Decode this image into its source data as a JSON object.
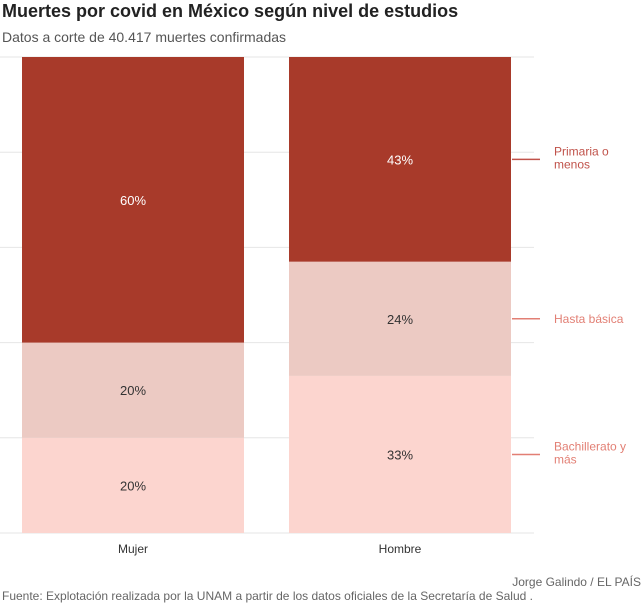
{
  "header": {
    "title": "Muertes por covid en México según nivel de estudios",
    "subtitle": "Datos a corte de 40.417 muertes confirmadas"
  },
  "footer": {
    "source": "Fuente: Explotación realizada por la UNAM a partir de los datos oficiales de la Secretaría de Salud .",
    "credit": "Jorge Galindo / EL PAÍS"
  },
  "colors": {
    "primaria": "#a83a2a",
    "basica": "#eccac3",
    "bachillerato": "#fcd5cf",
    "legend_primaria": "#c0524a",
    "legend_other": "#e27f74",
    "grid": "#e6e6e6"
  },
  "chart_data": {
    "type": "bar",
    "stacked": true,
    "categories": [
      "Mujer",
      "Hombre"
    ],
    "ylim": [
      0,
      100
    ],
    "grid": true,
    "legend_placement": "right",
    "series": [
      {
        "name": "Bachillerato y más",
        "values": [
          20,
          33
        ],
        "labels": [
          "20%",
          "33%"
        ]
      },
      {
        "name": "Hasta básica",
        "values": [
          20,
          24
        ],
        "labels": [
          "20%",
          "24%"
        ]
      },
      {
        "name": "Primaria o menos",
        "values": [
          60,
          43
        ],
        "labels": [
          "60%",
          "43%"
        ]
      }
    ]
  }
}
